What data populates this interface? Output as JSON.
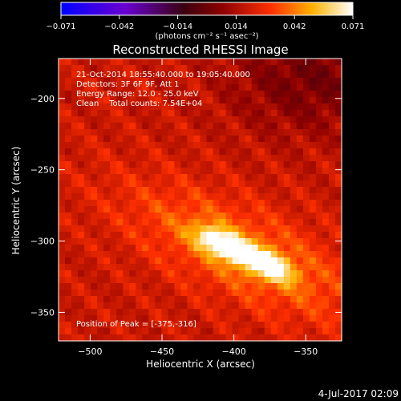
{
  "chart_data": {
    "type": "heatmap",
    "title": "Reconstructed RHESSI Image",
    "xlabel": "Heliocentric X (arcsec)",
    "ylabel": "Heliocentric Y (arcsec)",
    "xlim": [
      -522,
      -325
    ],
    "ylim": [
      -370,
      -172
    ],
    "xticks": [
      -500,
      -450,
      -400,
      -350
    ],
    "yticks": [
      -200,
      -250,
      -300,
      -350
    ],
    "colorbar": {
      "min": -0.071,
      "max": 0.071,
      "ticks": [
        "-0.071",
        "-0.042",
        "-0.014",
        "0.014",
        "0.042",
        "0.071"
      ],
      "unit_label": "(photons cm⁻² s⁻¹ asec⁻²)",
      "colormap": "blue-purple-red-yellow-white"
    },
    "annotations": {
      "time_range": "21-Oct-2014 18:55:40.000 to 19:05:40.000",
      "detectors": "Detectors: 3F 6F 9F, Att 1",
      "energy": "Energy Range: 12.0 - 25.0 keV",
      "method": "Clean    Total counts: 7.54E+04",
      "peak": "Position of Peak = [-375,-316]"
    },
    "peak_position": [
      -375,
      -316
    ],
    "sources": [
      {
        "x": -408,
        "y": -302,
        "peak": 0.071
      },
      {
        "x": -378,
        "y": -316,
        "peak": 0.071
      }
    ],
    "background_level": 0.02
  },
  "footer": {
    "date": "4-Jul-2017 02:09"
  }
}
